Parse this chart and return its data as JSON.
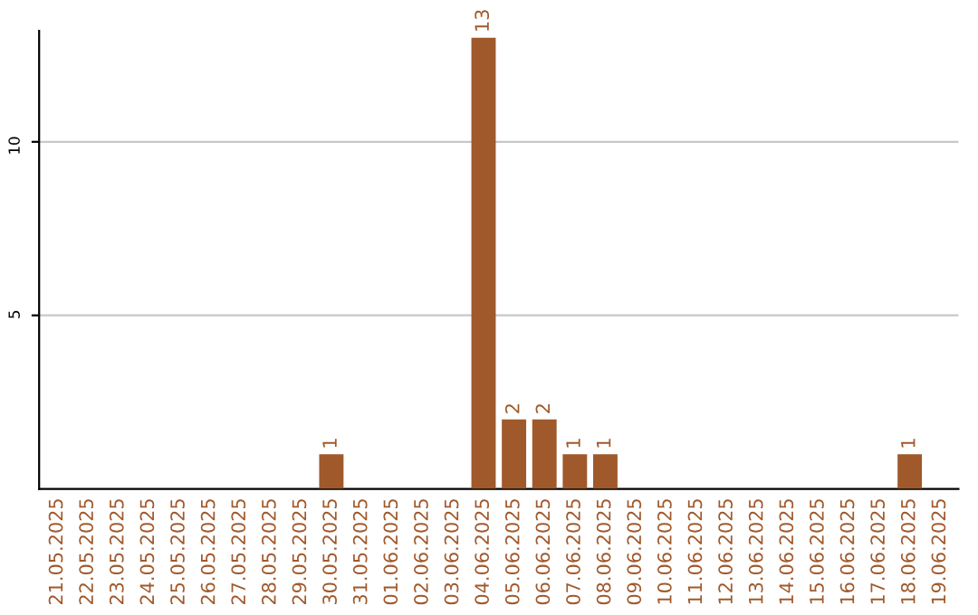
{
  "chart_data": {
    "type": "bar",
    "categories": [
      "21.05.2025",
      "22.05.2025",
      "23.05.2025",
      "24.05.2025",
      "25.05.2025",
      "26.05.2025",
      "27.05.2025",
      "28.05.2025",
      "29.05.2025",
      "30.05.2025",
      "31.05.2025",
      "01.06.2025",
      "02.06.2025",
      "03.06.2025",
      "04.06.2025",
      "05.06.2025",
      "06.06.2025",
      "07.06.2025",
      "08.06.2025",
      "09.06.2025",
      "10.06.2025",
      "11.06.2025",
      "12.06.2025",
      "13.06.2025",
      "14.06.2025",
      "15.06.2025",
      "16.06.2025",
      "17.06.2025",
      "18.06.2025",
      "19.06.2025"
    ],
    "values": [
      0,
      0,
      0,
      0,
      0,
      0,
      0,
      0,
      0,
      1,
      0,
      0,
      0,
      0,
      13,
      2,
      2,
      1,
      1,
      0,
      0,
      0,
      0,
      0,
      0,
      0,
      0,
      0,
      1,
      0
    ],
    "value_labels": [
      null,
      null,
      null,
      null,
      null,
      null,
      null,
      null,
      null,
      "1",
      null,
      null,
      null,
      null,
      "13",
      "2",
      "2",
      "1",
      "1",
      null,
      null,
      null,
      null,
      null,
      null,
      null,
      null,
      null,
      "1",
      null
    ],
    "color": "#a0592b",
    "ylim": [
      0,
      13.2
    ],
    "yticks": [
      5,
      10
    ],
    "grid": "y"
  }
}
